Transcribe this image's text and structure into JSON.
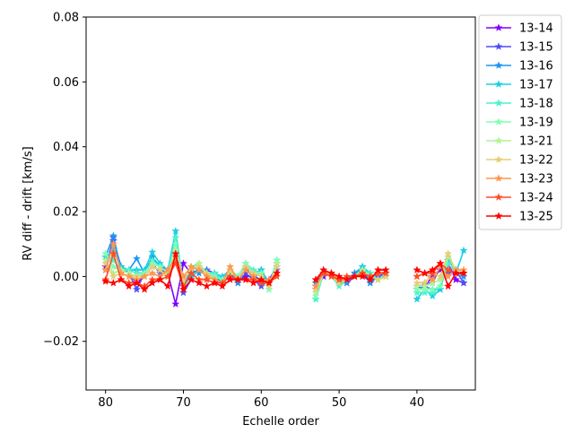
{
  "chart_data": {
    "type": "line",
    "xlabel": "Echelle order",
    "ylabel": "RV diff - drift [km/s]",
    "xlim": [
      82.5,
      32.5
    ],
    "ylim": [
      -0.035,
      0.08
    ],
    "xticks": [
      80,
      70,
      60,
      50,
      40
    ],
    "yticks": [
      -0.02,
      0.0,
      0.02,
      0.04,
      0.06,
      0.08
    ],
    "ytick_labels": [
      "−0.02",
      "0.00",
      "0.02",
      "0.04",
      "0.06",
      "0.08"
    ],
    "marker": "star",
    "legend_position": "outside-right",
    "orders": [
      80,
      79,
      78,
      77,
      76,
      75,
      74,
      73,
      72,
      71,
      70,
      69,
      68,
      67,
      66,
      65,
      64,
      63,
      62,
      61,
      60,
      59,
      58,
      53,
      52,
      51,
      50,
      49,
      48,
      47,
      46,
      45,
      44,
      40,
      39,
      38,
      37,
      36,
      35,
      34
    ],
    "series": [
      {
        "name": "13-14",
        "color": "#8000ff",
        "values": [
          0.003,
          0.011,
          0.003,
          0.001,
          -0.002,
          0.0,
          0.003,
          0.002,
          0.001,
          -0.0085,
          0.004,
          0.001,
          0.002,
          0.002,
          0.001,
          -0.001,
          0.0,
          -0.001,
          0.0,
          0.0,
          -0.001,
          -0.001,
          0.003,
          -0.004,
          0.0,
          0.001,
          -0.001,
          -0.002,
          0.0,
          0.001,
          -0.001,
          0.0,
          0.001,
          -0.003,
          -0.003,
          0.0,
          0.002,
          0.004,
          -0.001,
          -0.002
        ]
      },
      {
        "name": "13-15",
        "color": "#4d4dfc",
        "values": [
          0.002,
          0.012,
          0.002,
          0.001,
          -0.004,
          0.001,
          0.004,
          0.001,
          0.002,
          0.006,
          -0.005,
          -0.001,
          0.003,
          0.001,
          0.001,
          -0.002,
          0.001,
          -0.002,
          0.001,
          -0.001,
          -0.003,
          -0.001,
          0.002,
          -0.003,
          0.001,
          0.0,
          -0.002,
          -0.001,
          0.001,
          0.001,
          -0.002,
          0.0,
          0.0,
          -0.004,
          -0.002,
          -0.002,
          0.003,
          0.001,
          0.002,
          -0.002
        ]
      },
      {
        "name": "13-16",
        "color": "#1996f3",
        "values": [
          0.006,
          0.0125,
          0.002,
          0.002,
          0.0055,
          0.001,
          0.006,
          0.003,
          0.002,
          0.007,
          -0.003,
          0.002,
          0.001,
          0.002,
          -0.001,
          -0.001,
          0.002,
          -0.002,
          0.003,
          -0.001,
          0.002,
          -0.002,
          0.004,
          -0.002,
          0.001,
          0.0,
          -0.002,
          -0.002,
          0.001,
          0.003,
          -0.002,
          0.001,
          0.001,
          -0.004,
          -0.003,
          -0.004,
          -0.004,
          0.005,
          0.002,
          0.0
        ]
      },
      {
        "name": "13-17",
        "color": "#1acfe2",
        "values": [
          0.006,
          0.008,
          0.003,
          0.002,
          0.002,
          0.002,
          0.0075,
          0.004,
          0.002,
          0.014,
          -0.003,
          0.0,
          0.002,
          0.001,
          0.001,
          0.0,
          0.002,
          0.0,
          0.004,
          0.001,
          0.002,
          -0.003,
          0.005,
          -0.007,
          0.001,
          0.001,
          -0.002,
          -0.001,
          0.0,
          0.003,
          0.001,
          -0.001,
          0.0,
          -0.007,
          -0.004,
          -0.006,
          -0.004,
          0.006,
          0.001,
          0.008
        ]
      },
      {
        "name": "13-18",
        "color": "#4cf2ce",
        "values": [
          0.007,
          0.005,
          0.002,
          0.002,
          0.001,
          0.001,
          0.005,
          0.003,
          0.001,
          0.012,
          -0.002,
          0.003,
          0.004,
          0.001,
          0.001,
          -0.001,
          0.002,
          0.0,
          0.004,
          0.002,
          0.001,
          -0.004,
          0.005,
          -0.007,
          0.002,
          0.0,
          -0.003,
          -0.001,
          0.0,
          0.002,
          0.001,
          -0.001,
          0.001,
          -0.005,
          -0.005,
          -0.005,
          -0.003,
          0.004,
          0.001,
          0.001
        ]
      },
      {
        "name": "13-19",
        "color": "#80ffb4",
        "values": [
          0.007,
          0.003,
          0.002,
          0.001,
          0.0,
          0.001,
          0.004,
          0.003,
          0.001,
          0.01,
          -0.002,
          0.003,
          0.003,
          0.001,
          0.0,
          -0.001,
          0.001,
          0.0,
          0.004,
          0.001,
          0.001,
          -0.004,
          0.005,
          -0.006,
          0.001,
          0.0,
          -0.002,
          -0.001,
          0.0,
          0.002,
          0.0,
          -0.001,
          0.0,
          -0.004,
          -0.004,
          -0.004,
          -0.003,
          0.006,
          0.002,
          0.001
        ]
      },
      {
        "name": "13-21",
        "color": "#b2f396",
        "values": [
          0.005,
          0.001,
          0.002,
          0.001,
          0.0,
          0.0,
          0.003,
          0.002,
          0.0,
          0.008,
          -0.001,
          0.002,
          0.004,
          0.001,
          -0.001,
          -0.002,
          0.002,
          -0.001,
          0.003,
          0.001,
          0.0,
          -0.003,
          0.004,
          -0.005,
          0.001,
          0.0,
          -0.002,
          -0.001,
          0.0,
          0.002,
          0.0,
          -0.001,
          0.0,
          -0.003,
          -0.003,
          -0.002,
          -0.001,
          0.007,
          0.002,
          0.001
        ]
      },
      {
        "name": "13-22",
        "color": "#e6cf74",
        "values": [
          0.004,
          0.0,
          0.001,
          0.0,
          0.0,
          0.0,
          0.003,
          0.002,
          0.0,
          0.007,
          -0.001,
          0.002,
          0.003,
          0.001,
          -0.001,
          -0.002,
          0.002,
          -0.001,
          0.003,
          0.001,
          0.0,
          -0.003,
          0.003,
          -0.004,
          0.001,
          0.0,
          -0.002,
          -0.001,
          0.0,
          0.001,
          0.0,
          -0.001,
          0.0,
          -0.002,
          -0.002,
          0.001,
          0.0,
          0.007,
          0.001,
          0.001
        ]
      },
      {
        "name": "13-23",
        "color": "#ff964f",
        "values": [
          0.002,
          0.01,
          0.001,
          0.0,
          -0.001,
          0.0,
          0.001,
          0.0,
          0.002,
          0.006,
          0.0,
          0.003,
          0.002,
          0.0,
          -0.001,
          -0.002,
          0.003,
          -0.001,
          0.002,
          0.0,
          -0.002,
          -0.001,
          0.001,
          -0.003,
          0.001,
          0.001,
          -0.001,
          -0.001,
          0.0,
          0.001,
          0.0,
          0.001,
          0.001,
          0.0,
          0.001,
          -0.001,
          0.003,
          0.0,
          0.002,
          0.002
        ]
      },
      {
        "name": "13-24",
        "color": "#fe4d27",
        "values": [
          -0.001,
          0.007,
          -0.001,
          -0.002,
          -0.002,
          -0.003,
          -0.001,
          -0.001,
          0.0,
          0.004,
          -0.003,
          0.001,
          -0.001,
          -0.001,
          -0.002,
          -0.002,
          0.0,
          -0.001,
          -0.001,
          -0.001,
          -0.002,
          -0.002,
          0.0,
          -0.001,
          0.001,
          0.0,
          -0.001,
          0.0,
          0.0,
          0.001,
          0.0,
          0.001,
          0.001,
          0.0,
          0.001,
          0.001,
          0.004,
          0.002,
          0.001,
          0.001
        ]
      },
      {
        "name": "13-25",
        "color": "#ff0000",
        "values": [
          -0.0015,
          -0.002,
          -0.001,
          -0.003,
          -0.002,
          -0.004,
          -0.002,
          -0.001,
          -0.003,
          0.007,
          -0.004,
          -0.001,
          -0.002,
          -0.003,
          -0.002,
          -0.003,
          -0.001,
          -0.001,
          -0.001,
          -0.002,
          -0.001,
          -0.002,
          0.001,
          -0.001,
          0.002,
          0.001,
          0.0,
          -0.001,
          0.0,
          0.0,
          -0.001,
          0.002,
          0.002,
          0.002,
          0.001,
          0.002,
          0.004,
          -0.003,
          0.001,
          0.001
        ]
      }
    ]
  }
}
